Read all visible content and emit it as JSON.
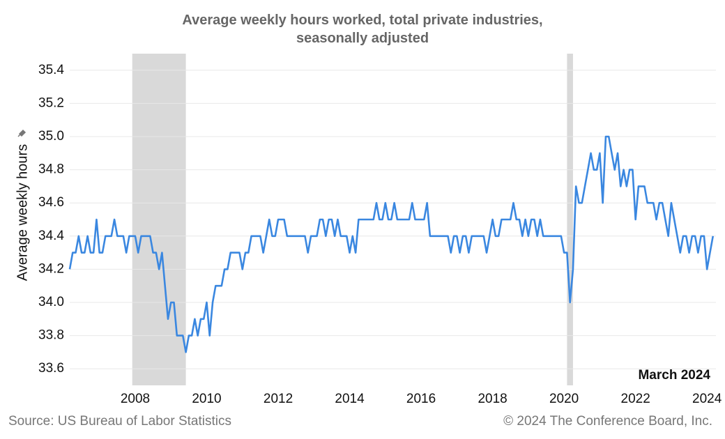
{
  "chart_data": {
    "type": "line",
    "title": "Average weekly hours worked, total private industries, seasonally adjusted",
    "y_label": "Average weekly hours",
    "annotation": "March 2024",
    "source": "Source: US Bureau of Labor Statistics",
    "copyright": "© 2024 The Conference Board, Inc.",
    "color": "#3a87e0",
    "shade_color": "#d9d9d9",
    "grid": true,
    "xlim": [
      2006.167,
      2024.25
    ],
    "xticks": [
      2008,
      2010,
      2012,
      2014,
      2016,
      2018,
      2020,
      2022,
      2024
    ],
    "ylim": [
      33.5,
      35.5
    ],
    "yticks": [
      33.6,
      33.8,
      {
        "value": 34,
        "label": "34.0"
      },
      34.2,
      34.4,
      34.6,
      34.8,
      {
        "value": 35,
        "label": "35.0"
      },
      35.2,
      35.4
    ],
    "shaded_periods": [
      [
        2007.917,
        2009.417
      ],
      [
        2020.083,
        2020.25
      ]
    ],
    "x": [
      2006.167,
      2006.25,
      2006.333,
      2006.417,
      2006.5,
      2006.583,
      2006.667,
      2006.75,
      2006.833,
      2006.917,
      2007,
      2007.083,
      2007.167,
      2007.25,
      2007.333,
      2007.417,
      2007.5,
      2007.583,
      2007.667,
      2007.75,
      2007.833,
      2007.917,
      2008,
      2008.083,
      2008.167,
      2008.25,
      2008.333,
      2008.417,
      2008.5,
      2008.583,
      2008.667,
      2008.75,
      2008.833,
      2008.917,
      2009,
      2009.083,
      2009.167,
      2009.25,
      2009.333,
      2009.417,
      2009.5,
      2009.583,
      2009.667,
      2009.75,
      2009.833,
      2009.917,
      2010,
      2010.083,
      2010.167,
      2010.25,
      2010.333,
      2010.417,
      2010.5,
      2010.583,
      2010.667,
      2010.75,
      2010.833,
      2010.917,
      2011,
      2011.083,
      2011.167,
      2011.25,
      2011.333,
      2011.417,
      2011.5,
      2011.583,
      2011.667,
      2011.75,
      2011.833,
      2011.917,
      2012,
      2012.083,
      2012.167,
      2012.25,
      2012.333,
      2012.417,
      2012.5,
      2012.583,
      2012.667,
      2012.75,
      2012.833,
      2012.917,
      2013,
      2013.083,
      2013.167,
      2013.25,
      2013.333,
      2013.417,
      2013.5,
      2013.583,
      2013.667,
      2013.75,
      2013.833,
      2013.917,
      2014,
      2014.083,
      2014.167,
      2014.25,
      2014.333,
      2014.417,
      2014.5,
      2014.583,
      2014.667,
      2014.75,
      2014.833,
      2014.917,
      2015,
      2015.083,
      2015.167,
      2015.25,
      2015.333,
      2015.417,
      2015.5,
      2015.583,
      2015.667,
      2015.75,
      2015.833,
      2015.917,
      2016,
      2016.083,
      2016.167,
      2016.25,
      2016.333,
      2016.417,
      2016.5,
      2016.583,
      2016.667,
      2016.75,
      2016.833,
      2016.917,
      2017,
      2017.083,
      2017.167,
      2017.25,
      2017.333,
      2017.417,
      2017.5,
      2017.583,
      2017.667,
      2017.75,
      2017.833,
      2017.917,
      2018,
      2018.083,
      2018.167,
      2018.25,
      2018.333,
      2018.417,
      2018.5,
      2018.583,
      2018.667,
      2018.75,
      2018.833,
      2018.917,
      2019,
      2019.083,
      2019.167,
      2019.25,
      2019.333,
      2019.417,
      2019.5,
      2019.583,
      2019.667,
      2019.75,
      2019.833,
      2019.917,
      2020,
      2020.083,
      2020.167,
      2020.25,
      2020.333,
      2020.417,
      2020.5,
      2020.583,
      2020.667,
      2020.75,
      2020.833,
      2020.917,
      2021,
      2021.083,
      2021.167,
      2021.25,
      2021.333,
      2021.417,
      2021.5,
      2021.583,
      2021.667,
      2021.75,
      2021.833,
      2021.917,
      2022,
      2022.083,
      2022.167,
      2022.25,
      2022.333,
      2022.417,
      2022.5,
      2022.583,
      2022.667,
      2022.75,
      2022.833,
      2022.917,
      2023,
      2023.083,
      2023.167,
      2023.25,
      2023.333,
      2023.417,
      2023.5,
      2023.583,
      2023.667,
      2023.75,
      2023.833,
      2023.917,
      2024,
      2024.083,
      2024.167
    ],
    "values": [
      34.2,
      34.3,
      34.3,
      34.4,
      34.3,
      34.3,
      34.4,
      34.3,
      34.3,
      34.5,
      34.3,
      34.3,
      34.4,
      34.4,
      34.4,
      34.5,
      34.4,
      34.4,
      34.4,
      34.3,
      34.4,
      34.4,
      34.4,
      34.3,
      34.4,
      34.4,
      34.4,
      34.4,
      34.3,
      34.3,
      34.2,
      34.3,
      34.1,
      33.9,
      34.0,
      34.0,
      33.8,
      33.8,
      33.8,
      33.7,
      33.8,
      33.8,
      33.9,
      33.8,
      33.9,
      33.9,
      34.0,
      33.8,
      34.0,
      34.1,
      34.1,
      34.1,
      34.2,
      34.2,
      34.3,
      34.3,
      34.3,
      34.3,
      34.2,
      34.3,
      34.3,
      34.4,
      34.4,
      34.4,
      34.4,
      34.3,
      34.4,
      34.5,
      34.4,
      34.4,
      34.5,
      34.5,
      34.5,
      34.4,
      34.4,
      34.4,
      34.4,
      34.4,
      34.4,
      34.4,
      34.3,
      34.4,
      34.4,
      34.4,
      34.5,
      34.5,
      34.4,
      34.5,
      34.5,
      34.4,
      34.5,
      34.4,
      34.4,
      34.4,
      34.3,
      34.4,
      34.3,
      34.5,
      34.5,
      34.5,
      34.5,
      34.5,
      34.5,
      34.6,
      34.5,
      34.5,
      34.6,
      34.5,
      34.5,
      34.6,
      34.5,
      34.5,
      34.5,
      34.5,
      34.5,
      34.6,
      34.5,
      34.5,
      34.5,
      34.5,
      34.6,
      34.4,
      34.4,
      34.4,
      34.4,
      34.4,
      34.4,
      34.4,
      34.3,
      34.4,
      34.4,
      34.3,
      34.4,
      34.4,
      34.3,
      34.4,
      34.4,
      34.4,
      34.4,
      34.4,
      34.3,
      34.4,
      34.5,
      34.4,
      34.4,
      34.5,
      34.5,
      34.5,
      34.5,
      34.6,
      34.5,
      34.5,
      34.4,
      34.5,
      34.4,
      34.5,
      34.5,
      34.4,
      34.5,
      34.4,
      34.4,
      34.4,
      34.4,
      34.4,
      34.4,
      34.4,
      34.3,
      34.3,
      34.0,
      34.2,
      34.7,
      34.6,
      34.6,
      34.7,
      34.8,
      34.9,
      34.8,
      34.8,
      34.9,
      34.6,
      35.0,
      35.0,
      34.9,
      34.8,
      34.9,
      34.7,
      34.8,
      34.7,
      34.8,
      34.8,
      34.5,
      34.7,
      34.7,
      34.7,
      34.6,
      34.6,
      34.6,
      34.5,
      34.6,
      34.6,
      34.5,
      34.4,
      34.6,
      34.5,
      34.4,
      34.3,
      34.4,
      34.4,
      34.3,
      34.4,
      34.4,
      34.3,
      34.4,
      34.4,
      34.2,
      34.3,
      34.4
    ]
  }
}
